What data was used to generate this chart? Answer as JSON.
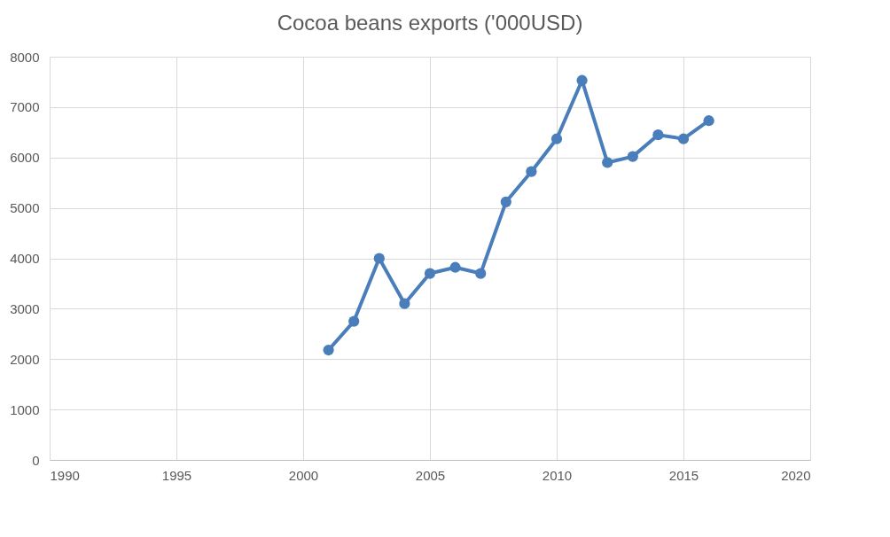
{
  "chart_data": {
    "type": "line",
    "title": "Cocoa  beans exports ('000USD)",
    "x": [
      2001,
      2002,
      2003,
      2004,
      2005,
      2006,
      2007,
      2008,
      2009,
      2010,
      2011,
      2012,
      2013,
      2014,
      2015,
      2016
    ],
    "series": [
      {
        "color": "#4a7ebb",
        "values": [
          2180,
          2750,
          4000,
          3100,
          3700,
          3820,
          3700,
          5120,
          5720,
          6370,
          7530,
          5900,
          6020,
          6450,
          6370,
          6730
        ]
      }
    ],
    "xlim": [
      1990,
      2020
    ],
    "xticks": [
      1990,
      1995,
      2000,
      2005,
      2010,
      2015,
      2020
    ],
    "ylim": [
      0,
      8000
    ],
    "yticks": [
      0,
      1000,
      2000,
      3000,
      4000,
      5000,
      6000,
      7000,
      8000
    ],
    "grid": true,
    "marker": "circle",
    "line_style": "solid"
  }
}
